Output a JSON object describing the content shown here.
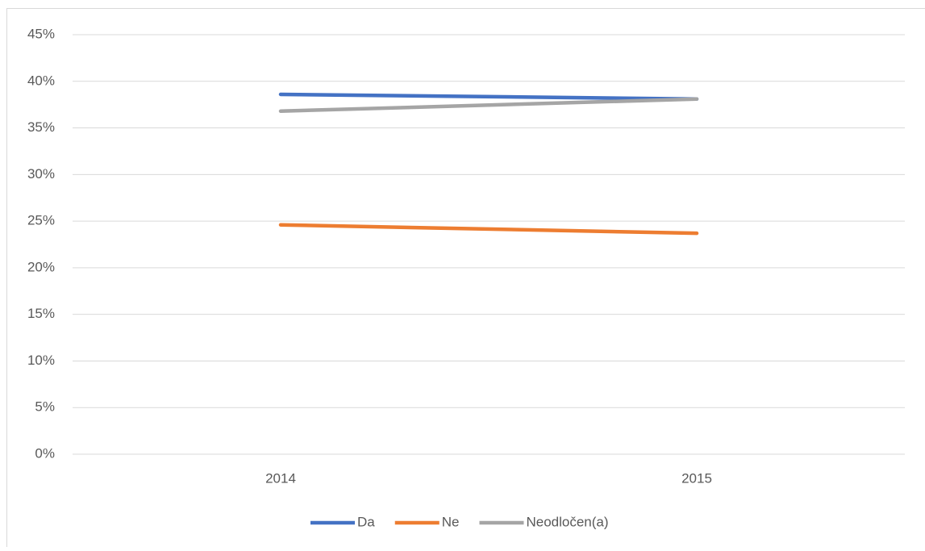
{
  "chart_data": {
    "type": "line",
    "categories": [
      "2014",
      "2015"
    ],
    "series": [
      {
        "name": "Da",
        "color": "#4472c4",
        "values": [
          38.6,
          38.1
        ]
      },
      {
        "name": "Ne",
        "color": "#ed7d31",
        "values": [
          24.6,
          23.7
        ]
      },
      {
        "name": "Neodločen(a)",
        "color": "#a5a5a5",
        "values": [
          36.8,
          38.1
        ]
      }
    ],
    "ylim": [
      0,
      45
    ],
    "yticks": [
      {
        "value": 0,
        "label": "0%"
      },
      {
        "value": 5,
        "label": "5%"
      },
      {
        "value": 10,
        "label": "10%"
      },
      {
        "value": 15,
        "label": "15%"
      },
      {
        "value": 20,
        "label": "20%"
      },
      {
        "value": 25,
        "label": "25%"
      },
      {
        "value": 30,
        "label": "30%"
      },
      {
        "value": 35,
        "label": "35%"
      },
      {
        "value": 40,
        "label": "40%"
      },
      {
        "value": 45,
        "label": "45%"
      }
    ],
    "grid": true,
    "legend": "bottom"
  }
}
